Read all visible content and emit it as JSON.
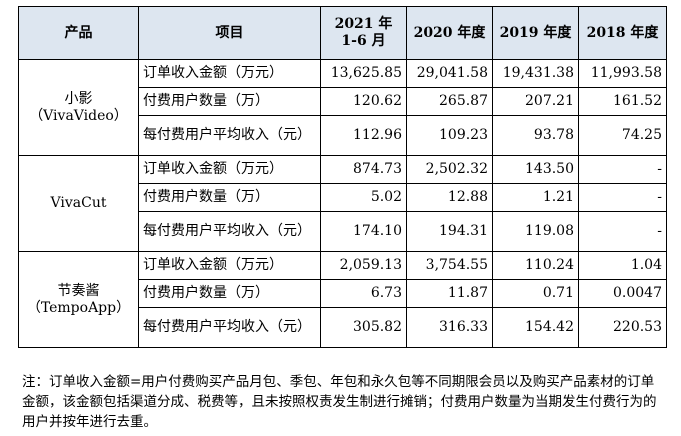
{
  "header": {
    "col_product": "产品",
    "col_item": "项目",
    "col_2021": "2021 年 1-6 月",
    "col_2020": "2020 年度",
    "col_2019": "2019 年度",
    "col_2018": "2018 年度"
  },
  "products": [
    {
      "name": "小影（VivaVideo）",
      "rows": [
        {
          "item": "订单收入金额（万元）",
          "v2021": "13,625.85",
          "v2020": "29,041.58",
          "v2019": "19,431.38",
          "v2018": "11,993.58"
        },
        {
          "item": "付费用户数量（万）",
          "v2021": "120.62",
          "v2020": "265.87",
          "v2019": "207.21",
          "v2018": "161.52"
        },
        {
          "item": "每付费用户平均收入（元）",
          "v2021": "112.96",
          "v2020": "109.23",
          "v2019": "93.78",
          "v2018": "74.25"
        }
      ]
    },
    {
      "name": "VivaCut",
      "rows": [
        {
          "item": "订单收入金额（万元）",
          "v2021": "874.73",
          "v2020": "2,502.32",
          "v2019": "143.50",
          "v2018": "-"
        },
        {
          "item": "付费用户数量（万）",
          "v2021": "5.02",
          "v2020": "12.88",
          "v2019": "1.21",
          "v2018": "-"
        },
        {
          "item": "每付费用户平均收入（元）",
          "v2021": "174.10",
          "v2020": "194.31",
          "v2019": "119.08",
          "v2018": "-"
        }
      ]
    },
    {
      "name": "节奏酱（TempoApp）",
      "rows": [
        {
          "item": "订单收入金额（万元）",
          "v2021": "2,059.13",
          "v2020": "3,754.55",
          "v2019": "110.24",
          "v2018": "1.04"
        },
        {
          "item": "付费用户数量（万）",
          "v2021": "6.73",
          "v2020": "11.87",
          "v2019": "0.71",
          "v2018": "0.0047"
        },
        {
          "item": "每付费用户平均收入（元）",
          "v2021": "305.82",
          "v2020": "316.33",
          "v2019": "154.42",
          "v2018": "220.53"
        }
      ]
    }
  ],
  "note": "注：订单收入金额=用户付费购买产品月包、季包、年包和永久包等不同期限会员以及购买产品素材的订单金额，该金额包括渠道分成、税费等，且未按照权责发生制进行摊销；付费用户数量为当期发生付费行为的用户并按年进行去重。"
}
